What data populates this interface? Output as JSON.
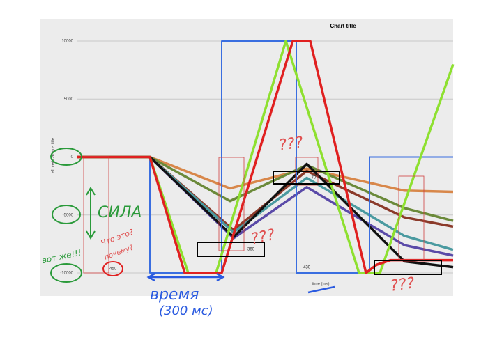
{
  "chart_data": {
    "type": "line",
    "title": "Chart title",
    "y_axis_title": "Left vertical axis title",
    "x_axis_title": "time (ms)",
    "xlim": [
      0,
      540
    ],
    "ylim": [
      -10000,
      10000
    ],
    "yticks": [
      -10000,
      -5000,
      0,
      5000,
      10000
    ],
    "grid": true,
    "series": [
      {
        "color": "#d8874a",
        "x": [
          0,
          105,
          220,
          330,
          470,
          540
        ],
        "values": [
          0,
          0,
          -2700,
          -1000,
          -2900,
          -3000
        ]
      },
      {
        "color": "#6b8a3a",
        "x": [
          0,
          105,
          220,
          330,
          470,
          540
        ],
        "values": [
          0,
          0,
          -3800,
          -700,
          -4400,
          -5500
        ]
      },
      {
        "color": "#8b3a2a",
        "x": [
          0,
          105,
          225,
          330,
          470,
          540
        ],
        "values": [
          0,
          0,
          -6300,
          -1200,
          -5200,
          -6000
        ]
      },
      {
        "color": "#4a9aa0",
        "x": [
          0,
          105,
          225,
          330,
          470,
          540
        ],
        "values": [
          0,
          0,
          -6500,
          -1800,
          -6800,
          -8000
        ]
      },
      {
        "color": "#5a4aa8",
        "x": [
          0,
          105,
          225,
          330,
          470,
          540
        ],
        "values": [
          0,
          0,
          -7000,
          -2600,
          -7600,
          -8500
        ]
      },
      {
        "color": "#111111",
        "x": [
          0,
          105,
          225,
          330,
          470,
          540
        ],
        "values": [
          0,
          0,
          -6900,
          -600,
          -9000,
          -9500
        ]
      },
      {
        "color": "#3a6ee0",
        "x": [
          0,
          105,
          105,
          208,
          208,
          315,
          315,
          420,
          420,
          540
        ],
        "values": [
          0,
          0,
          -10000,
          -10000,
          10000,
          10000,
          -10000,
          -10000,
          0,
          0
        ]
      },
      {
        "color": "#8ee030",
        "x": [
          0,
          105,
          160,
          200,
          300,
          405,
          435,
          540
        ],
        "values": [
          0,
          0,
          -10000,
          -10000,
          10000,
          -10000,
          -10000,
          8000
        ]
      },
      {
        "color": "#e02020",
        "x": [
          0,
          105,
          155,
          208,
          310,
          335,
          415,
          430,
          450,
          540
        ],
        "values": [
          0,
          0,
          -10000,
          -10000,
          10000,
          10000,
          -10000,
          -9300,
          -8900,
          -8900
        ]
      }
    ],
    "box_labels": [
      "360",
      "70",
      "430",
      "450"
    ],
    "annotations": [
      "СИЛА",
      "Что это?",
      "почему?",
      "вот же!!!",
      "время",
      "(300 мс)",
      "???",
      "???",
      "???"
    ]
  }
}
